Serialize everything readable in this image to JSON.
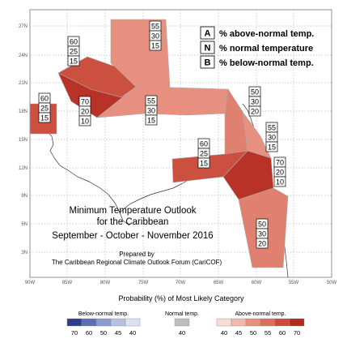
{
  "map_title": {
    "line1": "Minimum Temperature Outlook",
    "line2": "for the Caribbean",
    "line3": "September - October - November 2016"
  },
  "prepared_by": {
    "line1": "Prepared by",
    "line2": "The Caribbean Regional Climate Outlook Forum (CariCOF)"
  },
  "key": [
    {
      "letter": "A",
      "text": "% above-normal temp."
    },
    {
      "letter": "N",
      "text": "% normal temperature"
    },
    {
      "letter": "B",
      "text": "% below-normal temp."
    }
  ],
  "lat_ticks": [
    "27N",
    "24N",
    "21N",
    "18N",
    "15N",
    "12N",
    "9N",
    "6N",
    "3N"
  ],
  "lon_ticks": [
    "90W",
    "85W",
    "80W",
    "75W",
    "70W",
    "65W",
    "60W",
    "55W",
    "50W"
  ],
  "regions": [
    {
      "name": "north-bahamas",
      "color": "#e89080",
      "values": [
        "55",
        "30",
        "15"
      ]
    },
    {
      "name": "cuba-west",
      "color": "#cc5040",
      "values": [
        "60",
        "25",
        "15"
      ]
    },
    {
      "name": "cuba-central",
      "color": "#b83228",
      "values": [
        "70",
        "20",
        "10"
      ]
    },
    {
      "name": "belize",
      "color": "#cc5040",
      "values": [
        "60",
        "25",
        "15"
      ]
    },
    {
      "name": "hispaniola",
      "color": "#e89080",
      "values": [
        "55",
        "30",
        "15"
      ]
    },
    {
      "name": "lesser-antilles-north",
      "color": "#e08070",
      "values": [
        "50",
        "30",
        "20"
      ]
    },
    {
      "name": "lesser-antilles-east",
      "color": "#e89080",
      "values": [
        "55",
        "30",
        "15"
      ]
    },
    {
      "name": "curacao",
      "color": "#cc5040",
      "values": [
        "60",
        "25",
        "15"
      ]
    },
    {
      "name": "trinidad",
      "color": "#b83228",
      "values": [
        "70",
        "20",
        "10"
      ]
    },
    {
      "name": "guianas",
      "color": "#e08070",
      "values": [
        "50",
        "30",
        "20"
      ]
    }
  ],
  "legend": {
    "title": "Probability (%) of Most Likely Category",
    "below": {
      "label": "Below-normal temp.",
      "values": [
        "70",
        "60",
        "50",
        "45",
        "40"
      ],
      "colors": [
        "#2b3f8c",
        "#5a6fb8",
        "#8a9bd2",
        "#b5c1e3",
        "#dbe1f2"
      ]
    },
    "normal": {
      "label": "Normal temp.",
      "values": [
        "40"
      ],
      "colors": [
        "#bdbdbd"
      ]
    },
    "above": {
      "label": "Above-normal temp.",
      "values": [
        "40",
        "45",
        "50",
        "55",
        "60",
        "70"
      ],
      "colors": [
        "#f8dcd6",
        "#f2b8ad",
        "#e8907f",
        "#de6e5b",
        "#cc4a39",
        "#b22a1e"
      ]
    }
  }
}
